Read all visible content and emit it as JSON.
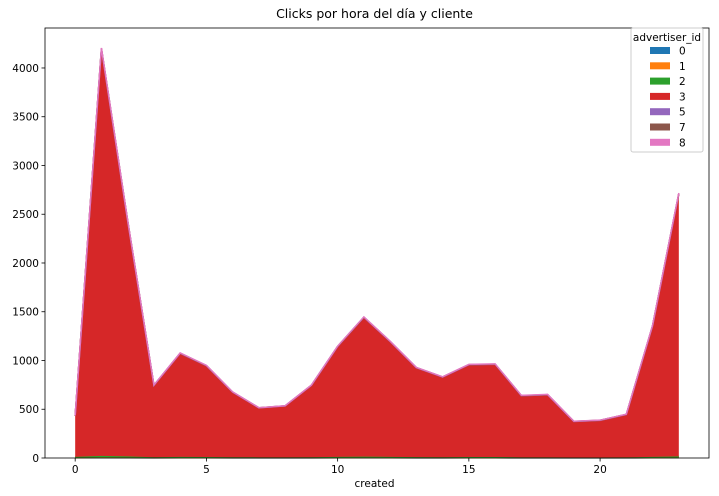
{
  "chart_data": {
    "type": "area",
    "stacked": true,
    "title": "Clicks por hora del día y cliente",
    "xlabel": "created",
    "ylabel": "",
    "xlim": [
      -1.15,
      24.15
    ],
    "ylim": [
      0,
      4410
    ],
    "xticks": [
      0,
      5,
      10,
      15,
      20
    ],
    "yticks": [
      0,
      500,
      1000,
      1500,
      2000,
      2500,
      3000,
      3500,
      4000
    ],
    "x": [
      0,
      1,
      2,
      3,
      4,
      5,
      6,
      7,
      8,
      9,
      10,
      11,
      12,
      13,
      14,
      15,
      16,
      17,
      18,
      19,
      20,
      21,
      22,
      23
    ],
    "legend": {
      "title": "advertiser_id",
      "position": "upper right"
    },
    "series": [
      {
        "name": "0",
        "color": "#1f77b4",
        "values": [
          2,
          4,
          3,
          1,
          2,
          2,
          1,
          1,
          1,
          1,
          2,
          2,
          2,
          1,
          1,
          2,
          2,
          1,
          1,
          1,
          1,
          1,
          2,
          3
        ]
      },
      {
        "name": "1",
        "color": "#ff7f0e",
        "values": [
          1,
          3,
          2,
          1,
          1,
          1,
          1,
          1,
          1,
          1,
          1,
          2,
          1,
          1,
          1,
          1,
          1,
          1,
          1,
          1,
          1,
          1,
          1,
          2
        ]
      },
      {
        "name": "2",
        "color": "#2ca02c",
        "values": [
          8,
          15,
          12,
          6,
          8,
          7,
          6,
          5,
          5,
          6,
          8,
          10,
          9,
          7,
          6,
          7,
          7,
          5,
          5,
          3,
          3,
          4,
          9,
          12
        ]
      },
      {
        "name": "3",
        "color": "#d62728",
        "values": [
          420,
          4170,
          2410,
          735,
          1060,
          935,
          665,
          505,
          525,
          735,
          1130,
          1425,
          1180,
          915,
          820,
          945,
          950,
          630,
          640,
          368,
          380,
          438,
          1340,
          2690
        ]
      },
      {
        "name": "5",
        "color": "#9467bd",
        "values": [
          3,
          6,
          5,
          2,
          3,
          2,
          2,
          2,
          2,
          2,
          3,
          4,
          3,
          2,
          2,
          2,
          2,
          2,
          2,
          2,
          1,
          2,
          4,
          5
        ]
      },
      {
        "name": "7",
        "color": "#8c564b",
        "values": [
          1,
          2,
          1,
          1,
          1,
          1,
          1,
          1,
          1,
          1,
          1,
          1,
          1,
          1,
          1,
          1,
          1,
          1,
          1,
          1,
          1,
          1,
          1,
          2
        ]
      },
      {
        "name": "8",
        "color": "#e377c2",
        "values": [
          2,
          5,
          4,
          2,
          2,
          2,
          2,
          1,
          1,
          2,
          2,
          3,
          2,
          2,
          2,
          2,
          2,
          2,
          2,
          1,
          1,
          2,
          3,
          4
        ]
      }
    ]
  }
}
